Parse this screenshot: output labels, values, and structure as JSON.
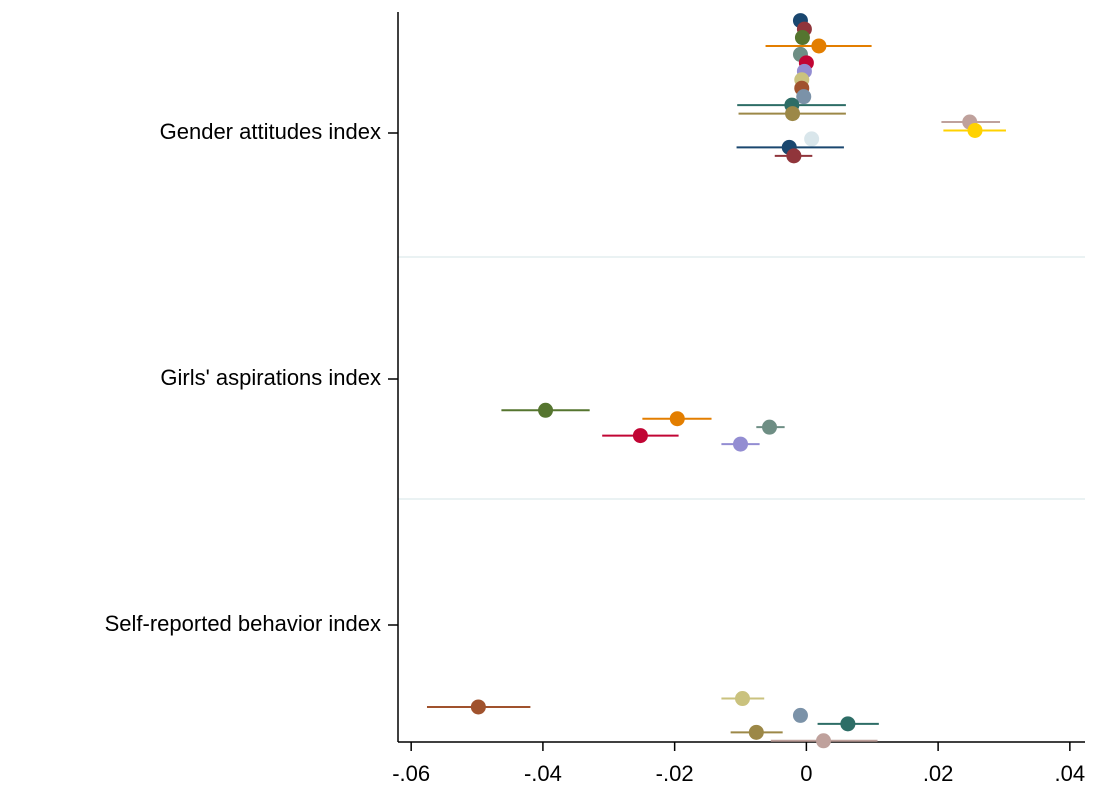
{
  "chart_data": {
    "type": "coefplot",
    "xlim": [
      -0.062,
      0.0423
    ],
    "xticks": [
      {
        "value": -0.06,
        "label": "-.06"
      },
      {
        "value": -0.04,
        "label": "-.04"
      },
      {
        "value": -0.02,
        "label": "-.02"
      },
      0,
      {
        "value": 0.02,
        "label": ".02"
      },
      {
        "value": 0.04,
        "label": ".04"
      }
    ],
    "groups": [
      {
        "label": "Gender attitudes index",
        "points": [
          {
            "estimate": -0.0009,
            "color": "#1a476f"
          },
          {
            "estimate": -0.0003,
            "color": "#90353b"
          },
          {
            "estimate": -0.0006,
            "color": "#55752f"
          },
          {
            "estimate": 0.0019,
            "ci": [
              -0.0062,
              0.0099
            ],
            "color": "#e37e00"
          },
          {
            "estimate": -0.0009,
            "color": "#6e8e84"
          },
          {
            "estimate": 0.0,
            "color": "#c10534"
          },
          {
            "estimate": -0.0003,
            "color": "#938dd2"
          },
          {
            "estimate": -0.0007,
            "color": "#cac27e"
          },
          {
            "estimate": -0.0007,
            "color": "#a0522d"
          },
          {
            "estimate": -0.0004,
            "color": "#7b92a8"
          },
          {
            "estimate": -0.0022,
            "ci": [
              -0.0105,
              0.006
            ],
            "color": "#2d6d66"
          },
          {
            "estimate": -0.0021,
            "ci": [
              -0.0103,
              0.006
            ],
            "color": "#9c8847"
          },
          {
            "estimate": 0.0248,
            "ci": [
              0.0205,
              0.0294
            ],
            "color": "#bfa19c"
          },
          {
            "estimate": 0.0256,
            "ci": [
              0.0208,
              0.0303
            ],
            "color": "#ffd200"
          },
          {
            "estimate": 0.0008,
            "color": "#d9e6eb"
          },
          {
            "estimate": -0.0026,
            "ci": [
              -0.0106,
              0.0057
            ],
            "color": "#1a476f"
          },
          {
            "estimate": -0.0019,
            "ci": [
              -0.0048,
              0.0009
            ],
            "color": "#90353b"
          }
        ]
      },
      {
        "label": "Girls' aspirations index",
        "points": [
          {
            "estimate": -0.0396,
            "ci": [
              -0.0463,
              -0.0329
            ],
            "color": "#55752f"
          },
          {
            "estimate": -0.0196,
            "ci": [
              -0.0249,
              -0.0144
            ],
            "color": "#e37e00"
          },
          {
            "estimate": -0.0056,
            "ci": [
              -0.0076,
              -0.0033
            ],
            "color": "#6e8e84"
          },
          {
            "estimate": -0.0252,
            "ci": [
              -0.031,
              -0.0194
            ],
            "color": "#c10534"
          },
          {
            "estimate": -0.01,
            "ci": [
              -0.0129,
              -0.0071
            ],
            "color": "#938dd2"
          }
        ]
      },
      {
        "label": "Self-reported behavior index",
        "points": [
          {
            "estimate": -0.0097,
            "ci": [
              -0.0129,
              -0.0064
            ],
            "color": "#cac27e"
          },
          {
            "estimate": -0.0498,
            "ci": [
              -0.0576,
              -0.0419
            ],
            "color": "#a0522d"
          },
          {
            "estimate": -0.0009,
            "color": "#7b92a8"
          },
          {
            "estimate": 0.0063,
            "ci": [
              0.0017,
              0.011
            ],
            "color": "#2d6d66"
          },
          {
            "estimate": -0.0076,
            "ci": [
              -0.0115,
              -0.0036
            ],
            "color": "#9c8847"
          },
          {
            "estimate": 0.0026,
            "ci": [
              -0.0054,
              0.0108
            ],
            "color": "#bfa19c"
          }
        ]
      }
    ]
  }
}
